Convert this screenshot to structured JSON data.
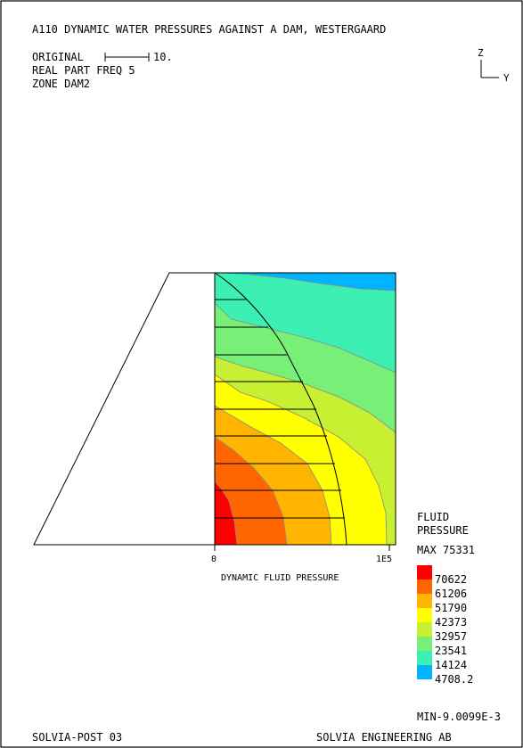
{
  "header": {
    "title": "A110 DYNAMIC WATER PRESSURES AGAINST A DAM, WESTERGAARD",
    "scale_label": "ORIGINAL",
    "scale_value": "10.",
    "line2": "REAL PART FREQ 5",
    "line3": "ZONE DAM2"
  },
  "axes_triad": {
    "vertical": "Z",
    "horizontal": "Y"
  },
  "pressure_axis": {
    "min_label": "0",
    "max_label": "1E5",
    "caption": "DYNAMIC FLUID PRESSURE",
    "range": [
      0,
      100000
    ]
  },
  "legend": {
    "title_line1": "FLUID",
    "title_line2": "PRESSURE",
    "max_text": "MAX 75331",
    "min_text": "MIN-9.0099E-3",
    "levels": [
      70622,
      61206,
      51790,
      42373,
      32957,
      23541,
      14124,
      4708.2
    ],
    "level_labels": [
      "70622",
      "61206",
      "51790",
      "42373",
      "32957",
      "23541",
      "14124",
      "4708.2"
    ],
    "colors": [
      "#ff0000",
      "#ff6600",
      "#ffb400",
      "#ffff00",
      "#c8f032",
      "#78f078",
      "#3cf0b4",
      "#00b4ff"
    ]
  },
  "footer": {
    "left": "SOLVIA-POST 03",
    "right": "SOLVIA ENGINEERING AB"
  }
}
